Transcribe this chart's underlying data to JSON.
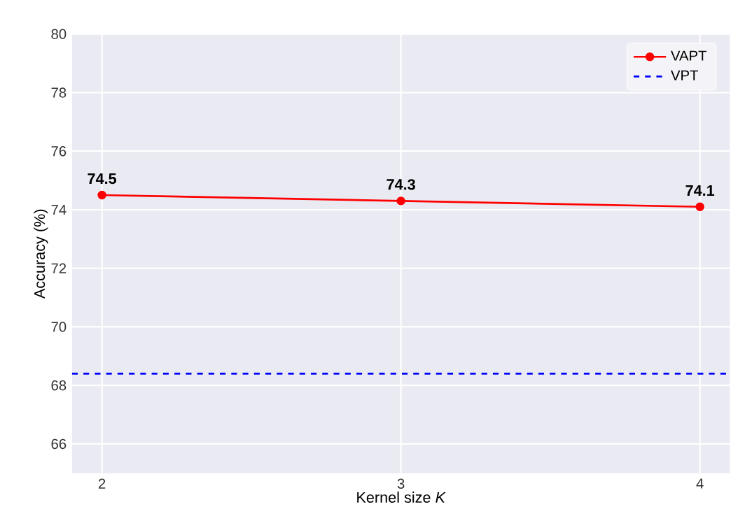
{
  "chart_data": {
    "type": "line",
    "xlabel": "Kernel size *K*",
    "ylabel": "Accuracy (%)",
    "x": [
      2,
      3,
      4
    ],
    "series": [
      {
        "name": "VAPT",
        "color": "#ff0000",
        "values": [
          74.5,
          74.3,
          74.1
        ]
      }
    ],
    "ref_lines": [
      {
        "axis": "y",
        "value": 68.4,
        "label": "VPT",
        "color": "#0000ff",
        "line_style": "dashed"
      }
    ],
    "xlim": [
      1.9,
      4.1
    ],
    "xticks": [
      2,
      3,
      4
    ],
    "ylim": [
      65,
      80
    ],
    "yticks": [
      66,
      68,
      70,
      72,
      74,
      76,
      78,
      80
    ],
    "grid": true,
    "legend": "top right",
    "marker": "circle",
    "line_style": "solid",
    "data_labels": true
  }
}
